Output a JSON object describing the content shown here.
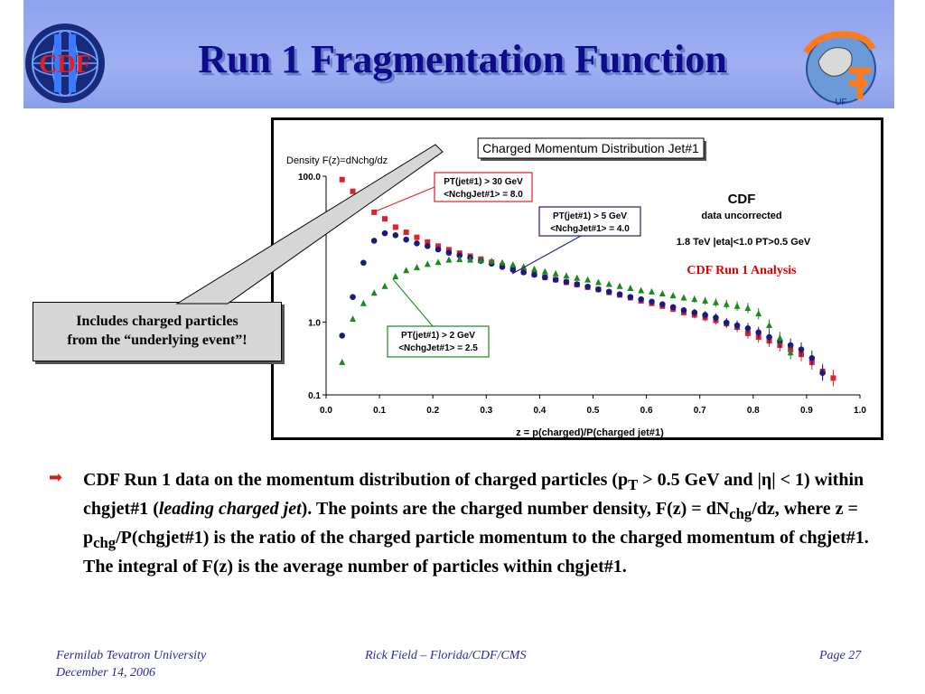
{
  "slide": {
    "title": "Run 1 Fragmentation Function",
    "logos": {
      "left": "CDF",
      "right": "UF"
    }
  },
  "callout": {
    "line1": "Includes charged particles",
    "line2": "from the “underlying event”!"
  },
  "bullet": {
    "icon": "arrow-bullet-icon",
    "seg1": "CDF Run 1 data on the momentum distribution of charged particles (p",
    "sub_T": "T",
    "seg2": " > 0.5 GeV and |",
    "eta": "η",
    "seg3": "| < 1) within chgjet#1 (",
    "italic": "leading charged  jet",
    "seg4": ").  The points are the charged number density, F(z) = dN",
    "sub_chg1": "chg",
    "seg5": "/dz, where z = p",
    "sub_chg2": "chg",
    "seg6": "/P(chgjet#1) is the ratio of the charged particle momentum to the charged momentum of chgjet#1. The integral of F(z) is the average number of particles within chgjet#1."
  },
  "footer": {
    "left_line1": "Fermilab Tevatron University",
    "left_line2": "December 14, 2006",
    "center": "Rick Field – Florida/CDF/CMS",
    "right": "Page 27"
  },
  "colors": {
    "title": "#0d0d8c",
    "header_bg": "#9aabf0",
    "series_red": "#e0202a",
    "series_blue": "#1a1a80",
    "series_green": "#1a8a1a",
    "annotation_red": "#e00000"
  },
  "chart_data": {
    "type": "scatter",
    "title": "Charged Momentum Distribution Jet#1",
    "xlabel": "z = p(charged)/P(charged jet#1)",
    "ylabel": "Density F(z)=dNchg/dz",
    "xlim": [
      0.0,
      1.0
    ],
    "ylim": [
      0.1,
      100.0
    ],
    "yscale": "log",
    "xticks": [
      "0.0",
      "0.1",
      "0.2",
      "0.3",
      "0.4",
      "0.5",
      "0.6",
      "0.7",
      "0.8",
      "0.9",
      "1.0"
    ],
    "yticks": [
      "0.1",
      "1.0",
      "100.0"
    ],
    "annotations": {
      "cdf": "CDF",
      "uncorrected": "data uncorrected",
      "conditions": "1.8 TeV |eta|<1.0 PT>0.5 GeV",
      "analysis": "CDF Run 1 Analysis"
    },
    "series": [
      {
        "name": "PT(jet#1) > 30 GeV",
        "label2": "<NchgJet#1> = 8.0",
        "marker": "square",
        "x": [
          0.01,
          0.03,
          0.05,
          0.07,
          0.09,
          0.11,
          0.13,
          0.15,
          0.17,
          0.19,
          0.21,
          0.23,
          0.25,
          0.27,
          0.29,
          0.31,
          0.33,
          0.35,
          0.37,
          0.39,
          0.41,
          0.43,
          0.45,
          0.47,
          0.49,
          0.51,
          0.53,
          0.55,
          0.57,
          0.59,
          0.61,
          0.63,
          0.65,
          0.67,
          0.69,
          0.71,
          0.73,
          0.75,
          0.77,
          0.79,
          0.81,
          0.83,
          0.85,
          0.87,
          0.89,
          0.91,
          0.93,
          0.95
        ],
        "y": [
          30.0,
          90.0,
          62.0,
          43.0,
          32.0,
          26.0,
          20.0,
          17.0,
          14.5,
          12.5,
          11.0,
          9.8,
          8.8,
          8.0,
          7.3,
          6.6,
          5.9,
          5.4,
          4.9,
          4.5,
          4.1,
          3.8,
          3.5,
          3.25,
          3.0,
          2.8,
          2.55,
          2.35,
          2.15,
          1.95,
          1.8,
          1.65,
          1.5,
          1.35,
          1.25,
          1.15,
          1.05,
          0.95,
          0.85,
          0.7,
          0.62,
          0.55,
          0.48,
          0.42,
          0.36,
          0.28,
          0.21,
          0.17
        ]
      },
      {
        "name": "PT(jet#1) > 5 GeV",
        "label2": "<NchgJet#1> = 4.0",
        "marker": "circle",
        "x": [
          0.03,
          0.05,
          0.07,
          0.09,
          0.11,
          0.13,
          0.15,
          0.17,
          0.19,
          0.21,
          0.23,
          0.25,
          0.27,
          0.29,
          0.31,
          0.33,
          0.35,
          0.37,
          0.39,
          0.41,
          0.43,
          0.45,
          0.47,
          0.49,
          0.51,
          0.53,
          0.55,
          0.57,
          0.59,
          0.61,
          0.63,
          0.65,
          0.67,
          0.69,
          0.71,
          0.73,
          0.75,
          0.77,
          0.79,
          0.81,
          0.83,
          0.85,
          0.87,
          0.89,
          0.91,
          0.93
        ],
        "y": [
          0.65,
          2.2,
          6.5,
          13.0,
          16.5,
          15.5,
          13.5,
          12.0,
          11.0,
          9.9,
          8.9,
          8.2,
          7.6,
          6.9,
          6.3,
          5.7,
          5.2,
          4.8,
          4.45,
          4.1,
          3.8,
          3.55,
          3.3,
          3.05,
          2.8,
          2.6,
          2.4,
          2.2,
          2.05,
          1.9,
          1.75,
          1.6,
          1.45,
          1.35,
          1.25,
          1.15,
          0.98,
          0.9,
          0.82,
          0.72,
          0.62,
          0.55,
          0.48,
          0.42,
          0.32,
          0.2
        ]
      },
      {
        "name": "PT(jet#1) > 2 GeV",
        "label2": "<NchgJet#1> = 2.5",
        "marker": "triangle",
        "x": [
          0.03,
          0.05,
          0.07,
          0.09,
          0.11,
          0.13,
          0.15,
          0.17,
          0.19,
          0.21,
          0.23,
          0.25,
          0.27,
          0.29,
          0.31,
          0.33,
          0.35,
          0.37,
          0.39,
          0.41,
          0.43,
          0.45,
          0.47,
          0.49,
          0.51,
          0.53,
          0.55,
          0.57,
          0.59,
          0.61,
          0.63,
          0.65,
          0.67,
          0.69,
          0.71,
          0.73,
          0.75,
          0.77,
          0.79,
          0.81,
          0.83,
          0.85,
          0.87
        ],
        "y": [
          0.28,
          1.1,
          1.8,
          2.5,
          3.1,
          4.2,
          5.1,
          5.6,
          6.2,
          6.6,
          7.1,
          7.2,
          7.1,
          7.0,
          6.8,
          6.5,
          6.1,
          5.7,
          5.3,
          4.9,
          4.6,
          4.3,
          4.0,
          3.8,
          3.5,
          3.3,
          3.1,
          2.9,
          2.7,
          2.6,
          2.45,
          2.3,
          2.15,
          2.05,
          1.95,
          1.85,
          1.75,
          1.65,
          1.55,
          1.3,
          0.9,
          0.6,
          0.38
        ]
      }
    ]
  }
}
